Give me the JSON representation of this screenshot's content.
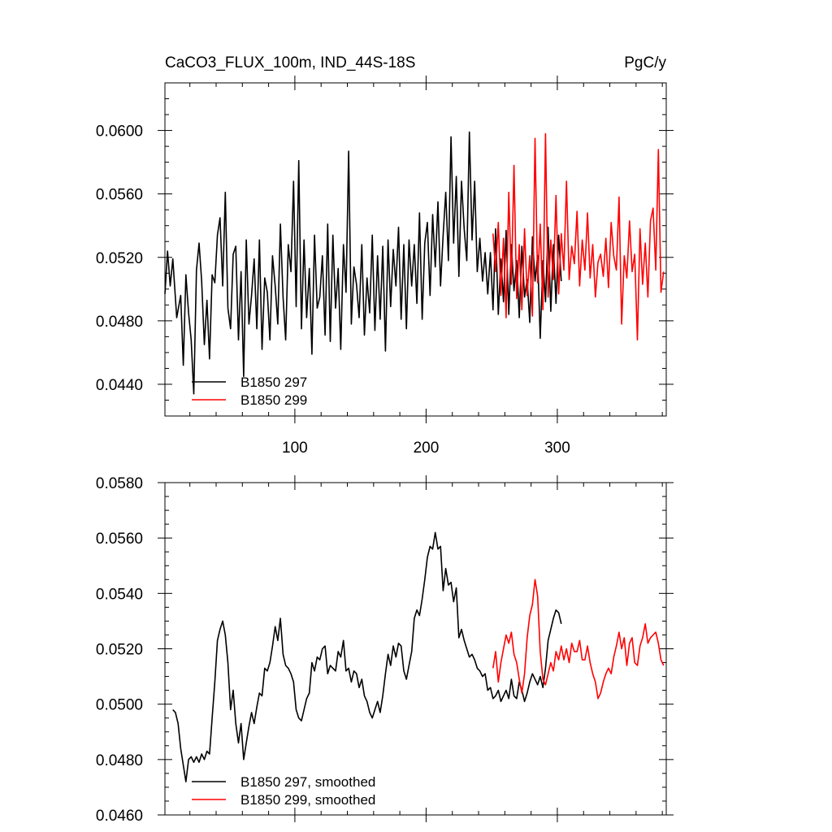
{
  "chart_data": [
    {
      "type": "line",
      "title": "CaCO3_FLUX_100m, IND_44S-18S",
      "units": "PgC/y",
      "xlim": [
        1,
        383
      ],
      "ylim": [
        0.042,
        0.063
      ],
      "x_ticks": [
        100,
        200,
        300
      ],
      "x_tick_labels": [
        "100",
        "200",
        "300"
      ],
      "y_ticks": [
        0.044,
        0.048,
        0.052,
        0.056,
        0.06
      ],
      "y_tick_labels": [
        "0.0440",
        "0.0480",
        "0.0520",
        "0.0560",
        "0.0600"
      ],
      "legend_position": "bottom-left",
      "series": [
        {
          "name": "B1850 297",
          "color": "#000000",
          "x": [
            1,
            3,
            5,
            7,
            10,
            13,
            15,
            17,
            19,
            21,
            23,
            25,
            27,
            29,
            31,
            33,
            35,
            37,
            39,
            41,
            43,
            45,
            47,
            49,
            51,
            53,
            55,
            57,
            59,
            61,
            63,
            65,
            67,
            69,
            71,
            73,
            75,
            77,
            79,
            81,
            83,
            85,
            87,
            89,
            91,
            93,
            95,
            97,
            99,
            101,
            103,
            105,
            107,
            109,
            111,
            113,
            115,
            117,
            119,
            121,
            123,
            125,
            127,
            129,
            131,
            133,
            135,
            137,
            139,
            141,
            143,
            145,
            147,
            149,
            151,
            153,
            155,
            157,
            159,
            161,
            163,
            165,
            167,
            169,
            171,
            173,
            175,
            177,
            179,
            181,
            183,
            185,
            187,
            189,
            191,
            193,
            195,
            197,
            199,
            201,
            203,
            205,
            207,
            209,
            211,
            213,
            215,
            217,
            219,
            221,
            223,
            225,
            227,
            229,
            231,
            233,
            235,
            237,
            239,
            241,
            243,
            245,
            247,
            249,
            251,
            253,
            255,
            257,
            259,
            261,
            263,
            265,
            267,
            269,
            271,
            273,
            275,
            277,
            279,
            281,
            283,
            285,
            287,
            289,
            291,
            293,
            295,
            297,
            299,
            301,
            303
          ],
          "values": [
            0.0497,
            0.0524,
            0.0502,
            0.0519,
            0.0482,
            0.0496,
            0.0452,
            0.0509,
            0.0485,
            0.0468,
            0.0434,
            0.0512,
            0.0529,
            0.0505,
            0.0465,
            0.0493,
            0.0456,
            0.0509,
            0.0504,
            0.0534,
            0.0545,
            0.0502,
            0.0561,
            0.0488,
            0.0475,
            0.0522,
            0.0527,
            0.0468,
            0.0511,
            0.0445,
            0.0531,
            0.0478,
            0.0496,
            0.0519,
            0.0475,
            0.0531,
            0.0462,
            0.0507,
            0.0498,
            0.0468,
            0.0521,
            0.0502,
            0.0478,
            0.0541,
            0.0495,
            0.0468,
            0.0528,
            0.0511,
            0.0568,
            0.0489,
            0.0581,
            0.0475,
            0.0531,
            0.0482,
            0.0513,
            0.0459,
            0.0534,
            0.0488,
            0.0495,
            0.0521,
            0.0471,
            0.0541,
            0.0467,
            0.0534,
            0.0488,
            0.0513,
            0.0462,
            0.0528,
            0.0498,
            0.0587,
            0.0478,
            0.0514,
            0.0503,
            0.0482,
            0.0528,
            0.0471,
            0.0507,
            0.0485,
            0.0534,
            0.0474,
            0.0521,
            0.0481,
            0.0527,
            0.0461,
            0.0531,
            0.0489,
            0.0525,
            0.0502,
            0.0539,
            0.0481,
            0.0528,
            0.0475,
            0.0531,
            0.0502,
            0.0528,
            0.0491,
            0.0548,
            0.0481,
            0.0529,
            0.0542,
            0.0496,
            0.0547,
            0.0514,
            0.0555,
            0.0502,
            0.0534,
            0.0561,
            0.0518,
            0.0596,
            0.0529,
            0.0571,
            0.0508,
            0.0568,
            0.0538,
            0.0518,
            0.0599,
            0.0531,
            0.0568,
            0.0511,
            0.0532,
            0.0505,
            0.0523,
            0.0497,
            0.0523,
            0.0487,
            0.0538,
            0.0484,
            0.0519,
            0.0492,
            0.0537,
            0.0484,
            0.0528,
            0.0499,
            0.0518,
            0.0482,
            0.0527,
            0.0495,
            0.0506,
            0.0479,
            0.0533,
            0.0505,
            0.0521,
            0.0469,
            0.0518,
            0.0492,
            0.0539,
            0.0486,
            0.0528,
            0.0491,
            0.0534,
            0.0505
          ]
        },
        {
          "name": "B1850 299",
          "color": "#ff0000",
          "x": [
            251,
            253,
            255,
            257,
            259,
            261,
            263,
            265,
            267,
            269,
            271,
            273,
            275,
            277,
            279,
            281,
            283,
            285,
            287,
            289,
            291,
            293,
            295,
            297,
            299,
            301,
            303,
            305,
            307,
            309,
            311,
            313,
            315,
            317,
            319,
            321,
            323,
            325,
            327,
            329,
            331,
            333,
            335,
            337,
            339,
            341,
            343,
            345,
            347,
            349,
            351,
            353,
            355,
            357,
            359,
            361,
            363,
            365,
            367,
            369,
            371,
            373,
            375,
            377,
            379,
            381
          ],
          "values": [
            0.0535,
            0.0511,
            0.0542,
            0.0496,
            0.0532,
            0.0482,
            0.0561,
            0.0503,
            0.0578,
            0.0494,
            0.0528,
            0.0487,
            0.0538,
            0.0496,
            0.0521,
            0.0483,
            0.0595,
            0.0504,
            0.0541,
            0.0487,
            0.0598,
            0.0495,
            0.0531,
            0.0506,
            0.0559,
            0.0497,
            0.0535,
            0.0512,
            0.0568,
            0.0506,
            0.0527,
            0.0516,
            0.0549,
            0.0502,
            0.0531,
            0.0512,
            0.0548,
            0.0507,
            0.0528,
            0.0495,
            0.0517,
            0.0522,
            0.0508,
            0.0532,
            0.0501,
            0.0542,
            0.0521,
            0.0512,
            0.0558,
            0.0478,
            0.0521,
            0.0507,
            0.0543,
            0.0511,
            0.0522,
            0.0468,
            0.0538,
            0.0503,
            0.0529,
            0.0495,
            0.0543,
            0.0551,
            0.0512,
            0.0588,
            0.0498,
            0.0511
          ]
        }
      ]
    },
    {
      "type": "line",
      "xlim": [
        1,
        383
      ],
      "ylim": [
        0.046,
        0.058
      ],
      "y_ticks": [
        0.046,
        0.048,
        0.05,
        0.052,
        0.054,
        0.056,
        0.058
      ],
      "y_tick_labels": [
        "0.0460",
        "0.0480",
        "0.0500",
        "0.0520",
        "0.0540",
        "0.0560",
        "0.0580"
      ],
      "legend_position": "bottom-left",
      "series": [
        {
          "name": "B1850 297, smoothed",
          "color": "#000000",
          "x": [
            7,
            9,
            11,
            13,
            15,
            17,
            19,
            21,
            23,
            25,
            27,
            29,
            31,
            33,
            35,
            37,
            39,
            41,
            43,
            45,
            47,
            49,
            51,
            53,
            55,
            57,
            59,
            61,
            63,
            65,
            67,
            69,
            71,
            73,
            75,
            77,
            79,
            81,
            83,
            85,
            87,
            89,
            91,
            93,
            95,
            97,
            99,
            101,
            103,
            105,
            107,
            109,
            111,
            113,
            115,
            117,
            119,
            121,
            123,
            125,
            127,
            129,
            131,
            133,
            135,
            137,
            139,
            141,
            143,
            145,
            147,
            149,
            151,
            153,
            155,
            157,
            159,
            161,
            163,
            165,
            167,
            169,
            171,
            173,
            175,
            177,
            179,
            181,
            183,
            185,
            187,
            189,
            191,
            193,
            195,
            197,
            199,
            201,
            203,
            205,
            207,
            209,
            211,
            213,
            215,
            217,
            219,
            221,
            223,
            225,
            227,
            229,
            231,
            233,
            235,
            237,
            239,
            241,
            243,
            245,
            247,
            249,
            251,
            253,
            255,
            257,
            259,
            261,
            263,
            265,
            267,
            269,
            271,
            273,
            275,
            277,
            279,
            281,
            283,
            285,
            287,
            289,
            291,
            293,
            295,
            297,
            299,
            301,
            303
          ],
          "values": [
            0.0498,
            0.0497,
            0.0493,
            0.0484,
            0.0478,
            0.0472,
            0.048,
            0.0481,
            0.0479,
            0.0481,
            0.0479,
            0.0482,
            0.048,
            0.0483,
            0.0482,
            0.0495,
            0.0508,
            0.0523,
            0.0527,
            0.053,
            0.0525,
            0.0515,
            0.0498,
            0.0505,
            0.0493,
            0.0486,
            0.0493,
            0.048,
            0.0486,
            0.0492,
            0.0497,
            0.0493,
            0.0499,
            0.0504,
            0.0503,
            0.0513,
            0.0512,
            0.0515,
            0.0521,
            0.0528,
            0.0523,
            0.0531,
            0.0518,
            0.0514,
            0.0513,
            0.0511,
            0.0508,
            0.0498,
            0.0495,
            0.0494,
            0.0498,
            0.0502,
            0.0504,
            0.0515,
            0.0512,
            0.0517,
            0.0516,
            0.052,
            0.0521,
            0.0511,
            0.0514,
            0.0513,
            0.0512,
            0.0519,
            0.0517,
            0.0523,
            0.0512,
            0.0513,
            0.0508,
            0.0512,
            0.0511,
            0.0506,
            0.0509,
            0.0503,
            0.0501,
            0.0497,
            0.0495,
            0.0498,
            0.0501,
            0.0497,
            0.0503,
            0.0511,
            0.0518,
            0.0514,
            0.0521,
            0.0517,
            0.0522,
            0.0521,
            0.0512,
            0.0509,
            0.0514,
            0.0519,
            0.0531,
            0.0534,
            0.0532,
            0.0538,
            0.0545,
            0.0553,
            0.0557,
            0.0556,
            0.0562,
            0.0556,
            0.0557,
            0.0541,
            0.0549,
            0.0543,
            0.0544,
            0.0537,
            0.0542,
            0.0524,
            0.0527,
            0.0523,
            0.052,
            0.0517,
            0.0518,
            0.0516,
            0.0513,
            0.0512,
            0.051,
            0.0511,
            0.0505,
            0.0506,
            0.0502,
            0.0503,
            0.0505,
            0.0501,
            0.0503,
            0.0505,
            0.0502,
            0.0509,
            0.0503,
            0.0502,
            0.0508,
            0.0505,
            0.0501,
            0.0504,
            0.0508,
            0.0511,
            0.0509,
            0.0507,
            0.051,
            0.0506,
            0.0513,
            0.0523,
            0.0527,
            0.0531,
            0.0534,
            0.0533,
            0.0529
          ]
        },
        {
          "name": "B1850 299, smoothed",
          "color": "#ff0000",
          "x": [
            251,
            253,
            255,
            257,
            259,
            261,
            263,
            265,
            267,
            269,
            271,
            273,
            275,
            277,
            279,
            281,
            283,
            285,
            287,
            289,
            291,
            293,
            295,
            297,
            299,
            301,
            303,
            305,
            307,
            309,
            311,
            313,
            315,
            317,
            319,
            321,
            323,
            325,
            327,
            329,
            331,
            333,
            335,
            337,
            339,
            341,
            343,
            345,
            347,
            349,
            351,
            353,
            355,
            357,
            359,
            361,
            363,
            365,
            367,
            369,
            371,
            373,
            375,
            377,
            379,
            381
          ],
          "values": [
            0.0513,
            0.0519,
            0.0508,
            0.0515,
            0.052,
            0.0525,
            0.0522,
            0.0526,
            0.0518,
            0.0515,
            0.0509,
            0.0504,
            0.0511,
            0.0524,
            0.0532,
            0.0536,
            0.0545,
            0.0539,
            0.0519,
            0.0509,
            0.0507,
            0.0511,
            0.0515,
            0.0512,
            0.0519,
            0.0516,
            0.0521,
            0.0516,
            0.052,
            0.0515,
            0.0522,
            0.0519,
            0.0519,
            0.0523,
            0.0516,
            0.0516,
            0.0521,
            0.0515,
            0.0511,
            0.0508,
            0.0502,
            0.0504,
            0.0508,
            0.0511,
            0.0513,
            0.0511,
            0.0517,
            0.0521,
            0.0526,
            0.052,
            0.0524,
            0.0514,
            0.0522,
            0.0524,
            0.0515,
            0.0514,
            0.0521,
            0.0524,
            0.0529,
            0.0522,
            0.0524,
            0.0525,
            0.0526,
            0.0522,
            0.0516,
            0.0514
          ]
        }
      ]
    }
  ]
}
